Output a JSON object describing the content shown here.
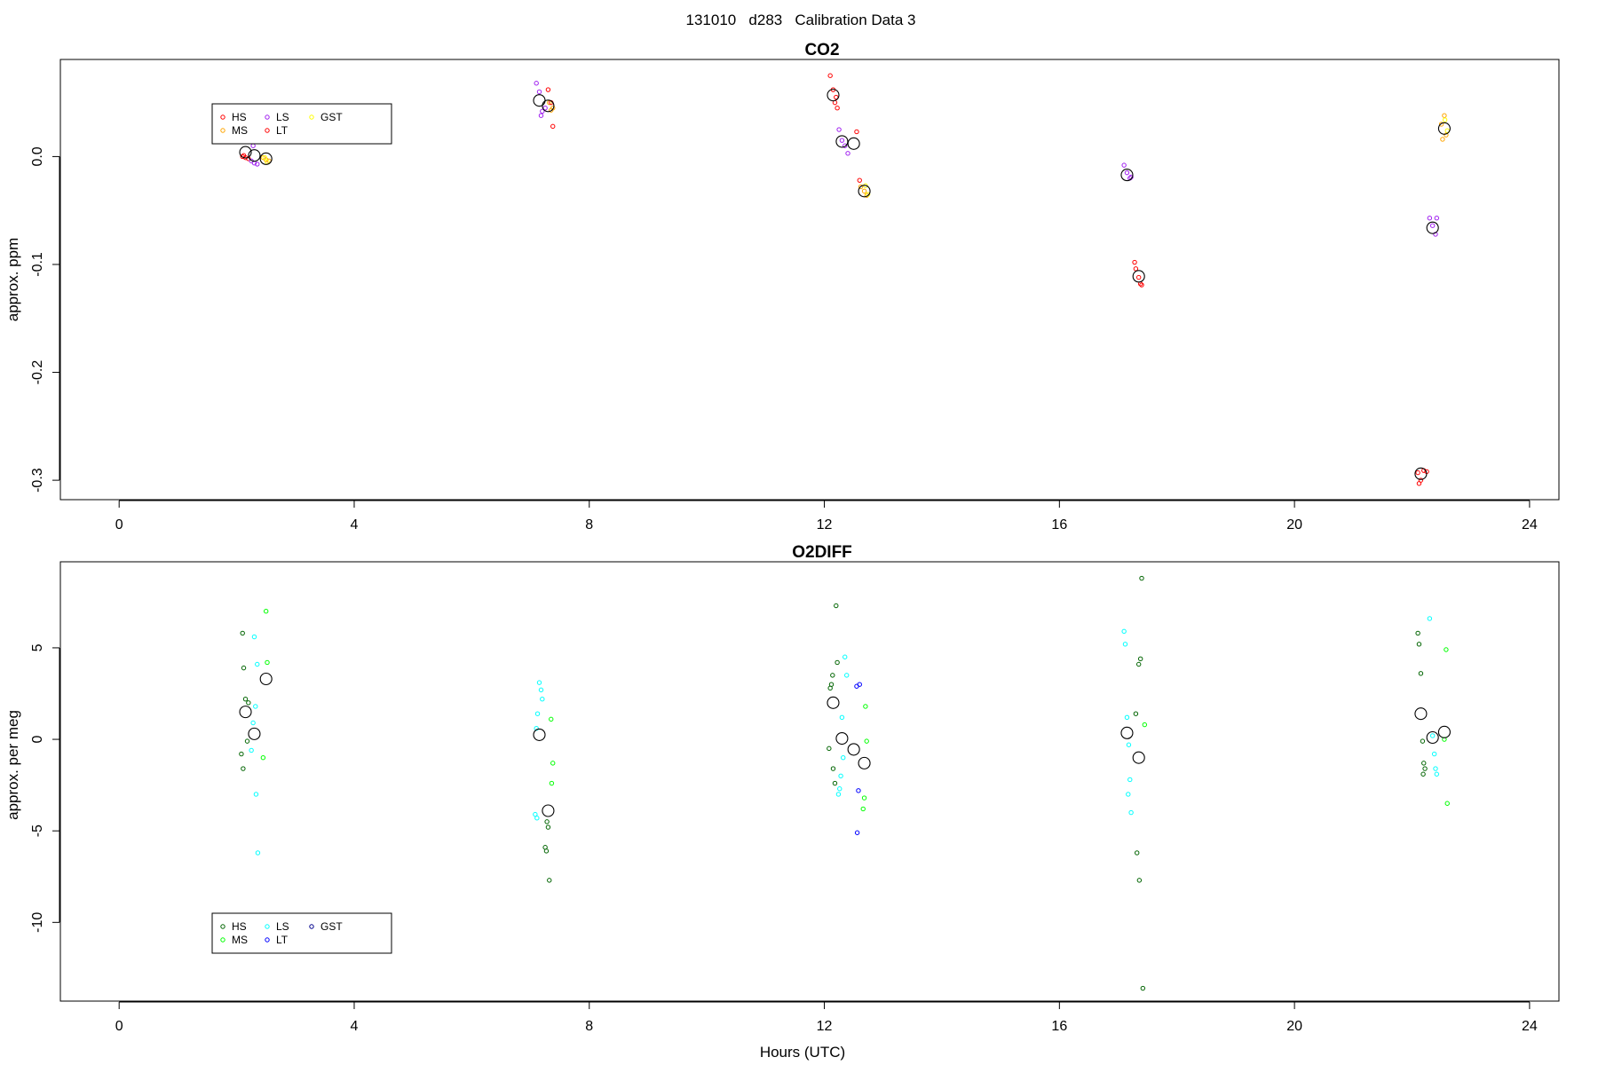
{
  "figure": {
    "title": "131010   d283   Calibration Data 3"
  },
  "chart_data": [
    {
      "type": "scatter",
      "title": "CO2",
      "xlabel": "",
      "ylabel": "approx. ppm",
      "xlim": [
        -1,
        24.5
      ],
      "ylim": [
        -0.318,
        0.09
      ],
      "xticks": [
        0,
        4,
        8,
        12,
        16,
        20,
        24
      ],
      "yticks": [
        0.0,
        -0.1,
        -0.2,
        -0.3
      ],
      "ytick_labels": [
        "0.0",
        "-0.1",
        "-0.2",
        "-0.3"
      ],
      "legend": {
        "position": "top-left",
        "entries": [
          {
            "label": "HS",
            "color": "#ff0000"
          },
          {
            "label": "MS",
            "color": "#ffa500"
          },
          {
            "label": "LS",
            "color": "#a020f0"
          },
          {
            "label": "LT",
            "color": "#ff0000"
          },
          {
            "label": "GST",
            "color": "#ffff00"
          }
        ]
      },
      "means": [
        {
          "x": 2.15,
          "y": 0.004
        },
        {
          "x": 2.3,
          "y": 0.001
        },
        {
          "x": 2.5,
          "y": -0.002
        },
        {
          "x": 7.15,
          "y": 0.052
        },
        {
          "x": 7.3,
          "y": 0.047
        },
        {
          "x": 12.15,
          "y": 0.057
        },
        {
          "x": 12.3,
          "y": 0.014
        },
        {
          "x": 12.5,
          "y": 0.012
        },
        {
          "x": 12.68,
          "y": -0.032
        },
        {
          "x": 17.15,
          "y": -0.017
        },
        {
          "x": 17.35,
          "y": -0.111
        },
        {
          "x": 22.15,
          "y": -0.294
        },
        {
          "x": 22.35,
          "y": -0.066
        },
        {
          "x": 22.55,
          "y": 0.026
        }
      ],
      "series": [
        {
          "name": "HS",
          "color": "#ff0000",
          "points": [
            {
              "x": 2.1,
              "y": 0.0
            },
            {
              "x": 2.15,
              "y": -0.001
            },
            {
              "x": 2.2,
              "y": -0.002
            },
            {
              "x": 2.12,
              "y": 0.001
            },
            {
              "x": 12.1,
              "y": 0.075
            },
            {
              "x": 12.15,
              "y": 0.062
            },
            {
              "x": 12.2,
              "y": 0.055
            },
            {
              "x": 12.22,
              "y": 0.045
            },
            {
              "x": 12.18,
              "y": 0.05
            },
            {
              "x": 17.28,
              "y": -0.098
            },
            {
              "x": 17.3,
              "y": -0.104
            },
            {
              "x": 17.35,
              "y": -0.112
            },
            {
              "x": 17.38,
              "y": -0.118
            },
            {
              "x": 17.4,
              "y": -0.119
            },
            {
              "x": 22.1,
              "y": -0.293
            },
            {
              "x": 22.15,
              "y": -0.3
            },
            {
              "x": 22.2,
              "y": -0.291
            },
            {
              "x": 22.25,
              "y": -0.292
            },
            {
              "x": 22.12,
              "y": -0.303
            }
          ]
        },
        {
          "name": "MS",
          "color": "#ffa500",
          "points": [
            {
              "x": 2.45,
              "y": -0.001
            },
            {
              "x": 2.5,
              "y": -0.003
            },
            {
              "x": 2.55,
              "y": -0.004
            },
            {
              "x": 7.32,
              "y": 0.05
            },
            {
              "x": 7.38,
              "y": 0.045
            },
            {
              "x": 7.35,
              "y": 0.043
            },
            {
              "x": 12.62,
              "y": -0.028
            },
            {
              "x": 12.68,
              "y": -0.032
            },
            {
              "x": 12.72,
              "y": -0.036
            },
            {
              "x": 22.5,
              "y": 0.03
            },
            {
              "x": 22.55,
              "y": 0.038
            },
            {
              "x": 22.58,
              "y": 0.02
            },
            {
              "x": 22.52,
              "y": 0.016
            }
          ]
        },
        {
          "name": "LS",
          "color": "#a020f0",
          "points": [
            {
              "x": 2.25,
              "y": -0.004
            },
            {
              "x": 2.3,
              "y": -0.006
            },
            {
              "x": 2.35,
              "y": -0.007
            },
            {
              "x": 2.28,
              "y": 0.01
            },
            {
              "x": 7.1,
              "y": 0.068
            },
            {
              "x": 7.15,
              "y": 0.06
            },
            {
              "x": 7.2,
              "y": 0.042
            },
            {
              "x": 7.25,
              "y": 0.045
            },
            {
              "x": 7.18,
              "y": 0.038
            },
            {
              "x": 12.25,
              "y": 0.025
            },
            {
              "x": 12.3,
              "y": 0.015
            },
            {
              "x": 12.35,
              "y": 0.01
            },
            {
              "x": 12.4,
              "y": 0.003
            },
            {
              "x": 17.1,
              "y": -0.008
            },
            {
              "x": 17.15,
              "y": -0.015
            },
            {
              "x": 17.2,
              "y": -0.02
            },
            {
              "x": 17.22,
              "y": -0.019
            },
            {
              "x": 22.3,
              "y": -0.057
            },
            {
              "x": 22.35,
              "y": -0.064
            },
            {
              "x": 22.4,
              "y": -0.072
            },
            {
              "x": 22.42,
              "y": -0.057
            }
          ]
        },
        {
          "name": "LT",
          "color": "#ff0000",
          "points": [
            {
              "x": 7.3,
              "y": 0.062
            },
            {
              "x": 7.35,
              "y": 0.05
            },
            {
              "x": 7.38,
              "y": 0.028
            },
            {
              "x": 12.55,
              "y": 0.023
            },
            {
              "x": 12.6,
              "y": -0.022
            }
          ]
        },
        {
          "name": "GST",
          "color": "#ffff00",
          "points": [
            {
              "x": 2.48,
              "y": -0.001
            },
            {
              "x": 2.52,
              "y": -0.005
            },
            {
              "x": 12.7,
              "y": -0.027
            },
            {
              "x": 12.74,
              "y": -0.035
            },
            {
              "x": 22.56,
              "y": 0.034
            },
            {
              "x": 22.6,
              "y": 0.024
            }
          ]
        }
      ]
    },
    {
      "type": "scatter",
      "title": "O2DIFF",
      "xlabel": "Hours (UTC)",
      "ylabel": "approx. per meg",
      "xlim": [
        -1,
        24.5
      ],
      "ylim": [
        -14.3,
        9.7
      ],
      "xticks": [
        0,
        4,
        8,
        12,
        16,
        20,
        24
      ],
      "yticks": [
        5,
        0,
        -5,
        -10
      ],
      "ytick_labels": [
        "5",
        "0",
        "-5",
        "-10"
      ],
      "legend": {
        "position": "bottom-left",
        "entries": [
          {
            "label": "HS",
            "color": "#006400"
          },
          {
            "label": "MS",
            "color": "#00ff00"
          },
          {
            "label": "LS",
            "color": "#00ffff"
          },
          {
            "label": "LT",
            "color": "#0000ff"
          },
          {
            "label": "GST",
            "color": "#00008b"
          }
        ]
      },
      "means": [
        {
          "x": 2.15,
          "y": 1.5
        },
        {
          "x": 2.3,
          "y": 0.3
        },
        {
          "x": 2.5,
          "y": 3.3
        },
        {
          "x": 7.15,
          "y": 0.25
        },
        {
          "x": 7.3,
          "y": -3.9
        },
        {
          "x": 12.15,
          "y": 2.0
        },
        {
          "x": 12.3,
          "y": 0.05
        },
        {
          "x": 12.5,
          "y": -0.55
        },
        {
          "x": 12.68,
          "y": -1.3
        },
        {
          "x": 17.15,
          "y": 0.35
        },
        {
          "x": 17.35,
          "y": -1.0
        },
        {
          "x": 22.15,
          "y": 1.4
        },
        {
          "x": 22.35,
          "y": 0.1
        },
        {
          "x": 22.55,
          "y": 0.4
        }
      ],
      "series": [
        {
          "name": "HS",
          "color": "#006400",
          "points": [
            {
              "x": 2.1,
              "y": 5.8
            },
            {
              "x": 2.12,
              "y": 3.9
            },
            {
              "x": 2.15,
              "y": 2.2
            },
            {
              "x": 2.18,
              "y": -0.1
            },
            {
              "x": 2.08,
              "y": -0.8
            },
            {
              "x": 2.11,
              "y": -1.6
            },
            {
              "x": 2.2,
              "y": 2.0
            },
            {
              "x": 7.28,
              "y": -4.5
            },
            {
              "x": 7.3,
              "y": -4.8
            },
            {
              "x": 7.25,
              "y": -5.9
            },
            {
              "x": 7.27,
              "y": -6.1
            },
            {
              "x": 7.32,
              "y": -7.7
            },
            {
              "x": 12.1,
              "y": 2.8
            },
            {
              "x": 12.12,
              "y": 3.0
            },
            {
              "x": 12.14,
              "y": 3.5
            },
            {
              "x": 12.2,
              "y": 7.3
            },
            {
              "x": 12.22,
              "y": 4.2
            },
            {
              "x": 12.08,
              "y": -0.5
            },
            {
              "x": 12.15,
              "y": -1.6
            },
            {
              "x": 12.18,
              "y": -2.4
            },
            {
              "x": 17.3,
              "y": 1.4
            },
            {
              "x": 17.35,
              "y": 4.1
            },
            {
              "x": 17.38,
              "y": 4.4
            },
            {
              "x": 17.4,
              "y": 8.8
            },
            {
              "x": 17.32,
              "y": -6.2
            },
            {
              "x": 17.36,
              "y": -7.7
            },
            {
              "x": 17.42,
              "y": -13.6
            },
            {
              "x": 22.1,
              "y": 5.8
            },
            {
              "x": 22.12,
              "y": 5.2
            },
            {
              "x": 22.15,
              "y": 3.6
            },
            {
              "x": 22.18,
              "y": -0.1
            },
            {
              "x": 22.2,
              "y": -1.3
            },
            {
              "x": 22.22,
              "y": -1.6
            },
            {
              "x": 22.19,
              "y": -1.9
            }
          ]
        },
        {
          "name": "MS",
          "color": "#00ff00",
          "points": [
            {
              "x": 2.5,
              "y": 7.0
            },
            {
              "x": 2.52,
              "y": 4.2
            },
            {
              "x": 2.45,
              "y": -1.0
            },
            {
              "x": 7.35,
              "y": 1.1
            },
            {
              "x": 7.38,
              "y": -1.3
            },
            {
              "x": 7.36,
              "y": -2.4
            },
            {
              "x": 12.7,
              "y": 1.8
            },
            {
              "x": 12.72,
              "y": -0.1
            },
            {
              "x": 12.68,
              "y": -3.2
            },
            {
              "x": 12.66,
              "y": -3.8
            },
            {
              "x": 17.45,
              "y": 0.8
            },
            {
              "x": 22.58,
              "y": 4.9
            },
            {
              "x": 22.55,
              "y": 0.0
            },
            {
              "x": 22.6,
              "y": -3.5
            }
          ]
        },
        {
          "name": "LS",
          "color": "#00ffff",
          "points": [
            {
              "x": 2.3,
              "y": 5.6
            },
            {
              "x": 2.35,
              "y": 4.1
            },
            {
              "x": 2.32,
              "y": 1.8
            },
            {
              "x": 2.28,
              "y": 0.9
            },
            {
              "x": 2.25,
              "y": -0.6
            },
            {
              "x": 2.33,
              "y": -3.0
            },
            {
              "x": 2.36,
              "y": -6.2
            },
            {
              "x": 7.15,
              "y": 3.1
            },
            {
              "x": 7.18,
              "y": 2.7
            },
            {
              "x": 7.2,
              "y": 2.2
            },
            {
              "x": 7.12,
              "y": 1.4
            },
            {
              "x": 7.1,
              "y": 0.6
            },
            {
              "x": 7.08,
              "y": -4.1
            },
            {
              "x": 7.11,
              "y": -4.3
            },
            {
              "x": 12.35,
              "y": 4.5
            },
            {
              "x": 12.38,
              "y": 3.5
            },
            {
              "x": 12.3,
              "y": 1.2
            },
            {
              "x": 12.32,
              "y": -1.0
            },
            {
              "x": 12.28,
              "y": -2.0
            },
            {
              "x": 12.26,
              "y": -2.7
            },
            {
              "x": 12.24,
              "y": -3.0
            },
            {
              "x": 17.1,
              "y": 5.9
            },
            {
              "x": 17.12,
              "y": 5.2
            },
            {
              "x": 17.15,
              "y": 1.2
            },
            {
              "x": 17.18,
              "y": -0.3
            },
            {
              "x": 17.2,
              "y": -2.2
            },
            {
              "x": 17.17,
              "y": -3.0
            },
            {
              "x": 17.22,
              "y": -4.0
            },
            {
              "x": 22.3,
              "y": 6.6
            },
            {
              "x": 22.35,
              "y": 0.2
            },
            {
              "x": 22.38,
              "y": -0.8
            },
            {
              "x": 22.4,
              "y": -1.6
            },
            {
              "x": 22.42,
              "y": -1.9
            }
          ]
        },
        {
          "name": "LT",
          "color": "#0000ff",
          "points": [
            {
              "x": 12.55,
              "y": 2.9
            },
            {
              "x": 12.6,
              "y": 3.0
            },
            {
              "x": 12.58,
              "y": -2.8
            },
            {
              "x": 12.56,
              "y": -5.1
            }
          ]
        }
      ]
    }
  ]
}
